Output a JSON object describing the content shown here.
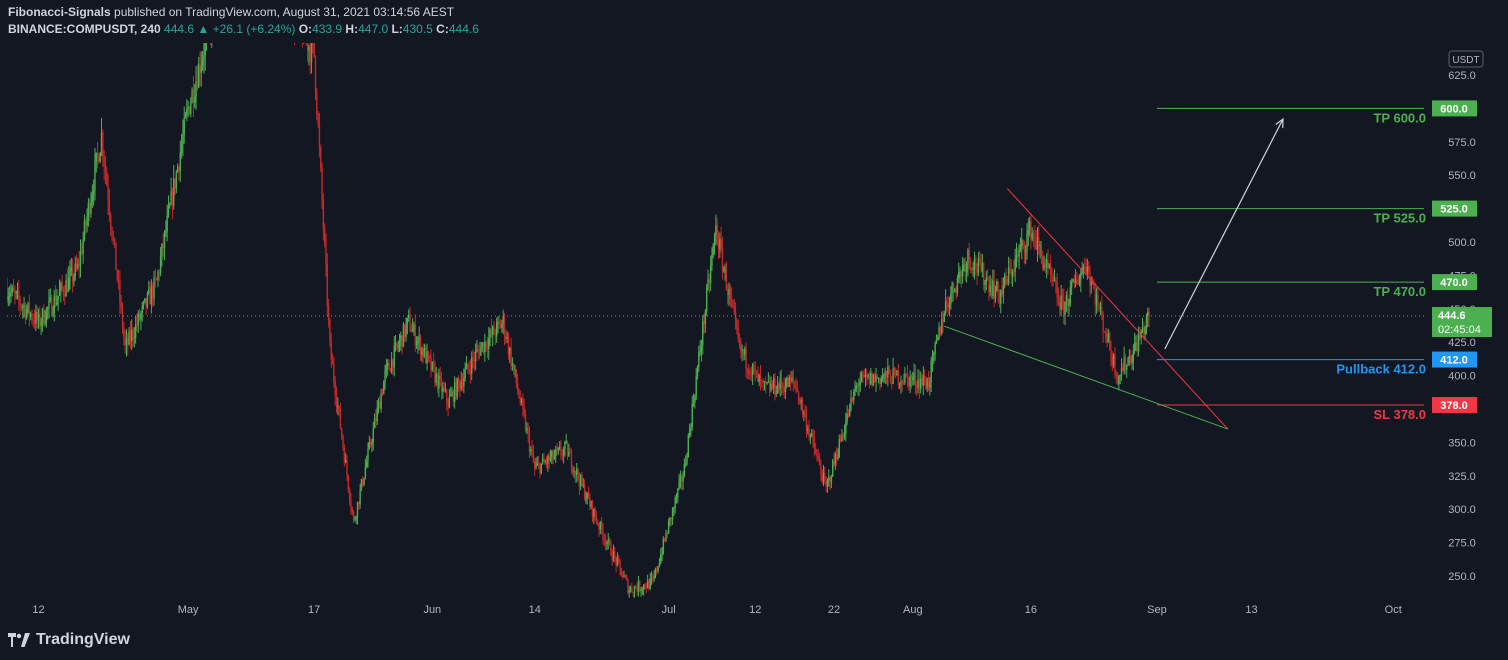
{
  "header": {
    "author": "Fibonacci-Signals",
    "published": "published on TradingView.com, August 31, 2021 03:14:56 AEST",
    "symbol": "BINANCE:COMPUSDT, 240",
    "last": "444.6",
    "change": "▲ +26.1 (+6.24%)",
    "o_label": "O:",
    "o": "433.9",
    "h_label": "H:",
    "h": "447.0",
    "l_label": "L:",
    "l": "430.5",
    "c_label": "C:",
    "c": "444.6"
  },
  "footer": {
    "brand": "TradingView"
  },
  "chart_data": {
    "type": "candlestick",
    "currency": "USDT",
    "ylim": [
      232,
      640
    ],
    "y_ticks": [
      250,
      275,
      300,
      325,
      350,
      375,
      400,
      425,
      450,
      475,
      500,
      525,
      550,
      575,
      600,
      625
    ],
    "y_tick_labels": [
      "250.0",
      "275.0",
      "300.0",
      "325.0",
      "350.0",
      "375.0",
      "400.0",
      "425.0",
      "450.0",
      "475.0",
      "500.0",
      "525.0",
      "550.0",
      "575.0",
      "600.0",
      "625.0"
    ],
    "x_ticks": [
      "12",
      "May",
      "17",
      "Jun",
      "14",
      "Jul",
      "12",
      "22",
      "Aug",
      "16",
      "Sep",
      "13",
      "Oct"
    ],
    "price_path": [
      {
        "date": "2021-04-08",
        "price": 465
      },
      {
        "date": "2021-04-12",
        "price": 440
      },
      {
        "date": "2021-04-17",
        "price": 480
      },
      {
        "date": "2021-04-20",
        "price": 580
      },
      {
        "date": "2021-04-23",
        "price": 420
      },
      {
        "date": "2021-04-27",
        "price": 470
      },
      {
        "date": "2021-05-01",
        "price": 600
      },
      {
        "date": "2021-05-05",
        "price": 690
      },
      {
        "date": "2021-05-10",
        "price": 720
      },
      {
        "date": "2021-05-17",
        "price": 640
      },
      {
        "date": "2021-05-19",
        "price": 420
      },
      {
        "date": "2021-05-22",
        "price": 290
      },
      {
        "date": "2021-05-26",
        "price": 400
      },
      {
        "date": "2021-05-29",
        "price": 440
      },
      {
        "date": "2021-06-03",
        "price": 380
      },
      {
        "date": "2021-06-07",
        "price": 420
      },
      {
        "date": "2021-06-10",
        "price": 440
      },
      {
        "date": "2021-06-14",
        "price": 330
      },
      {
        "date": "2021-06-18",
        "price": 345
      },
      {
        "date": "2021-06-22",
        "price": 290
      },
      {
        "date": "2021-06-26",
        "price": 240
      },
      {
        "date": "2021-06-29",
        "price": 245
      },
      {
        "date": "2021-07-03",
        "price": 330
      },
      {
        "date": "2021-07-07",
        "price": 510
      },
      {
        "date": "2021-07-10",
        "price": 420
      },
      {
        "date": "2021-07-13",
        "price": 390
      },
      {
        "date": "2021-07-17",
        "price": 395
      },
      {
        "date": "2021-07-21",
        "price": 315
      },
      {
        "date": "2021-07-25",
        "price": 395
      },
      {
        "date": "2021-07-29",
        "price": 400
      },
      {
        "date": "2021-08-03",
        "price": 395
      },
      {
        "date": "2021-08-05",
        "price": 450
      },
      {
        "date": "2021-08-08",
        "price": 490
      },
      {
        "date": "2021-08-12",
        "price": 460
      },
      {
        "date": "2021-08-16",
        "price": 510
      },
      {
        "date": "2021-08-20",
        "price": 450
      },
      {
        "date": "2021-08-23",
        "price": 485
      },
      {
        "date": "2021-08-27",
        "price": 400
      },
      {
        "date": "2021-08-29",
        "price": 418
      },
      {
        "date": "2021-08-31",
        "price": 444.6
      }
    ],
    "last_price": {
      "value": 444.6,
      "label": "444.6",
      "countdown": "02:45:04"
    },
    "levels": [
      {
        "name": "TP 600.0",
        "value": 600,
        "label": "600.0",
        "color": "#4caf50"
      },
      {
        "name": "TP 525.0",
        "value": 525,
        "label": "525.0",
        "color": "#4caf50"
      },
      {
        "name": "TP 470.0",
        "value": 470,
        "label": "470.0",
        "color": "#4caf50"
      },
      {
        "name": "Pullback 412.0",
        "value": 412,
        "label": "412.0",
        "color": "#2196f3"
      },
      {
        "name": "SL 378.0",
        "value": 378,
        "label": "378.0",
        "color": "#f23645"
      }
    ],
    "trendlines": [
      {
        "name": "wedge-resistance",
        "color": "#f23645",
        "from": {
          "date": "2021-08-13",
          "price": 540
        },
        "to": {
          "date": "2021-09-10",
          "price": 360
        }
      },
      {
        "name": "wedge-support",
        "color": "#4caf50",
        "from": {
          "date": "2021-08-05",
          "price": 437
        },
        "to": {
          "date": "2021-09-10",
          "price": 360
        }
      }
    ],
    "arrow": {
      "from": {
        "date": "2021-09-02",
        "price": 420
      },
      "to": {
        "date": "2021-09-17",
        "price": 592
      },
      "color": "#d1d4dc"
    },
    "colors": {
      "up": "#26a69a",
      "down": "#ef5350",
      "up_candle": "#4caf50",
      "down_candle": "#c62828",
      "grid": "#1e222d",
      "text": "#b2b5be"
    }
  }
}
